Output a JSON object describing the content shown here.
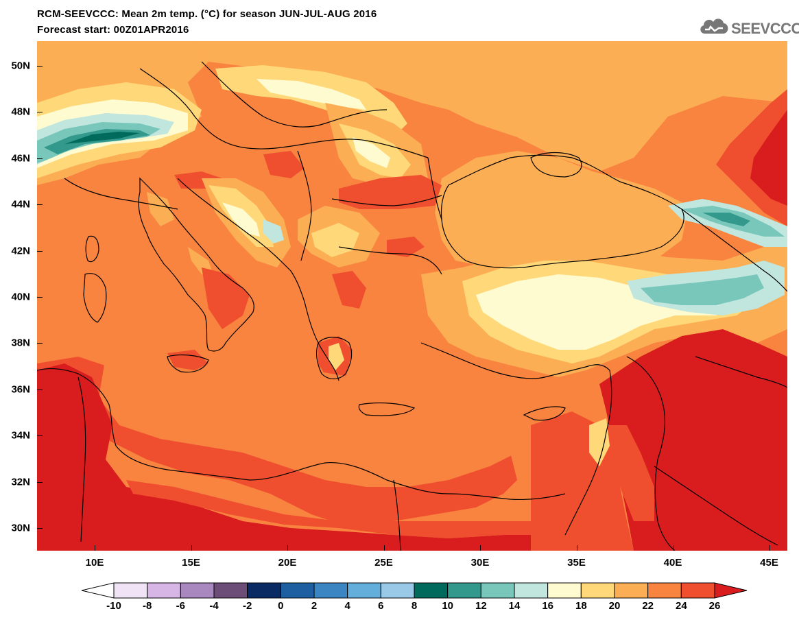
{
  "title_line1": "RCM-SEEVCCC: Mean 2m temp. (°C) for season JUN-JUL-AUG 2016",
  "title_line2": "Forecast start: 00Z01APR2016",
  "logo_text": "SEEVCCC",
  "lat_labels": [
    "50N",
    "48N",
    "46N",
    "44N",
    "42N",
    "40N",
    "38N",
    "36N",
    "34N",
    "32N",
    "30N"
  ],
  "lon_labels": [
    "10E",
    "15E",
    "20E",
    "25E",
    "30E",
    "35E",
    "40E",
    "45E"
  ],
  "colorbar": {
    "labels": [
      "-10",
      "-8",
      "-6",
      "-4",
      "-2",
      "0",
      "2",
      "4",
      "6",
      "8",
      "10",
      "12",
      "14",
      "16",
      "18",
      "20",
      "22",
      "24",
      "26"
    ],
    "colors": [
      "#ffffff",
      "#efe3f5",
      "#d7b6e6",
      "#a988c0",
      "#6b4d78",
      "#0a2a63",
      "#1d5fa0",
      "#3b85c3",
      "#64aedb",
      "#99c9e6",
      "#006a5c",
      "#34998d",
      "#79c7bb",
      "#c0e6de",
      "#fffbd1",
      "#ffd979",
      "#fcae54",
      "#f88440",
      "#ef4f2f",
      "#d91d1f"
    ],
    "under_color": "#ffffff",
    "over_color": "#d91d1f"
  },
  "colors": {
    "t26": "#d91d1f",
    "t24": "#ef4f2f",
    "t22": "#f88440",
    "t20": "#fcae54",
    "t18": "#ffd979",
    "t16": "#fffbd1",
    "t14": "#c0e6de",
    "t12": "#79c7bb",
    "t10": "#34998d",
    "t8": "#006a5c"
  }
}
